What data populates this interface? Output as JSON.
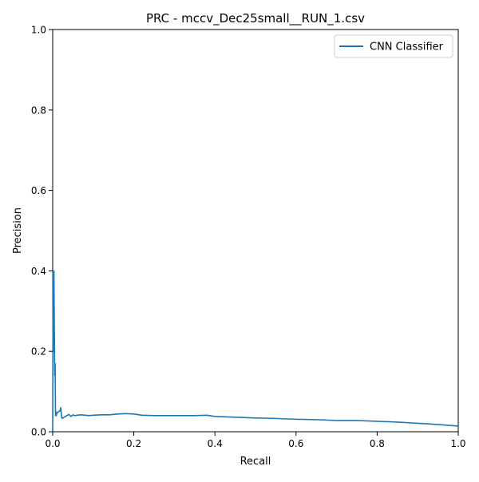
{
  "chart_data": {
    "type": "line",
    "title": "PRC - mccv_Dec25small__RUN_1.csv",
    "xlabel": "Recall",
    "ylabel": "Precision",
    "xlim": [
      0.0,
      1.0
    ],
    "ylim": [
      0.0,
      1.0
    ],
    "x_ticks": [
      0.0,
      0.2,
      0.4,
      0.6,
      0.8,
      1.0
    ],
    "y_ticks": [
      0.0,
      0.2,
      0.4,
      0.6,
      0.8,
      1.0
    ],
    "x_tick_labels": [
      "0.0",
      "0.2",
      "0.4",
      "0.6",
      "0.8",
      "1.0"
    ],
    "y_tick_labels": [
      "0.0",
      "0.2",
      "0.4",
      "0.6",
      "0.8",
      "1.0"
    ],
    "grid": false,
    "legend": {
      "position": "upper-right",
      "entries": [
        "CNN Classifier"
      ]
    },
    "series": [
      {
        "name": "CNN Classifier",
        "color": "#1f77b4",
        "x": [
          0.0,
          0.001,
          0.002,
          0.003,
          0.004,
          0.005,
          0.006,
          0.007,
          0.008,
          0.009,
          0.01,
          0.012,
          0.015,
          0.018,
          0.02,
          0.022,
          0.024,
          0.026,
          0.03,
          0.035,
          0.04,
          0.045,
          0.05,
          0.055,
          0.06,
          0.07,
          0.08,
          0.09,
          0.1,
          0.12,
          0.14,
          0.16,
          0.18,
          0.2,
          0.22,
          0.25,
          0.3,
          0.35,
          0.38,
          0.4,
          0.45,
          0.5,
          0.55,
          0.6,
          0.65,
          0.7,
          0.75,
          0.8,
          0.85,
          0.9,
          0.95,
          1.0
        ],
        "y": [
          0.0,
          0.4,
          0.2,
          0.4,
          0.27,
          0.14,
          0.17,
          0.04,
          0.05,
          0.04,
          0.045,
          0.048,
          0.05,
          0.052,
          0.06,
          0.035,
          0.033,
          0.035,
          0.037,
          0.04,
          0.043,
          0.038,
          0.042,
          0.04,
          0.041,
          0.042,
          0.041,
          0.04,
          0.041,
          0.042,
          0.042,
          0.044,
          0.045,
          0.044,
          0.041,
          0.04,
          0.04,
          0.04,
          0.041,
          0.038,
          0.036,
          0.034,
          0.033,
          0.031,
          0.03,
          0.028,
          0.028,
          0.026,
          0.024,
          0.021,
          0.018,
          0.014
        ]
      }
    ]
  }
}
